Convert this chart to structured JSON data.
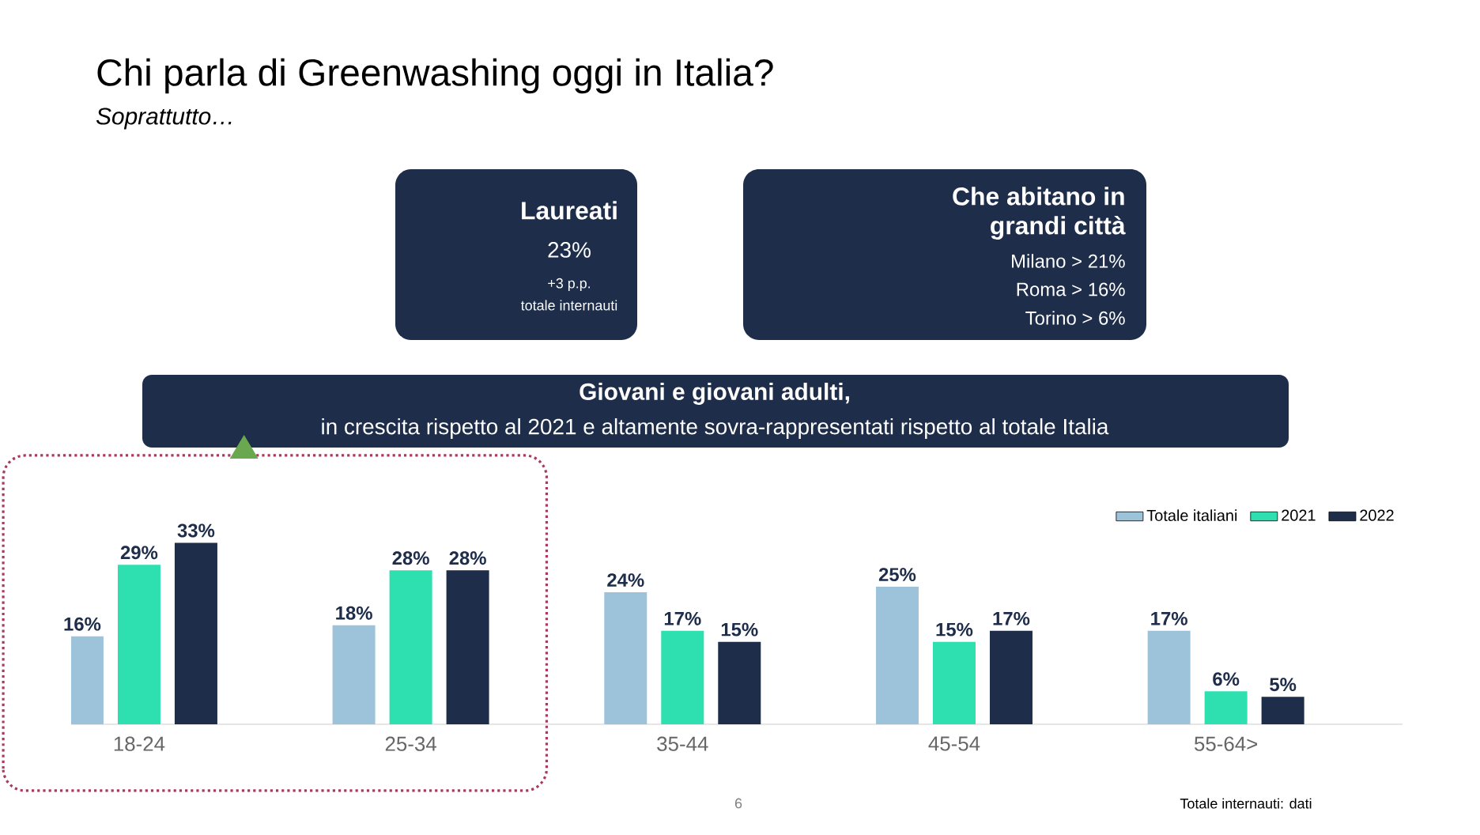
{
  "chart_data": {
    "type": "bar",
    "title": "Chi parla di Greenwashing oggi in Italia?",
    "subtitle": "Soprattutto…",
    "categories": [
      "18-24",
      "25-34",
      "35-44",
      "45-54",
      "55-64>"
    ],
    "series": [
      {
        "name": "Totale italiani",
        "color": "#9dc3db",
        "values": [
          16,
          18,
          24,
          25,
          17
        ],
        "value_labels": [
          "16%",
          "18%",
          "24%",
          "25%",
          "17%"
        ]
      },
      {
        "name": "2021",
        "color": "#2ee0b0",
        "values": [
          29,
          28,
          17,
          15,
          6
        ],
        "value_labels": [
          "29%",
          "28%",
          "17%",
          "15%",
          "6%"
        ]
      },
      {
        "name": "2022",
        "color": "#1e2d4a",
        "values": [
          33,
          28,
          15,
          17,
          5
        ],
        "value_labels": [
          "33%",
          "28%",
          "15%",
          "17%",
          "5%"
        ]
      }
    ],
    "legend": "top right",
    "annotations": [
      "Laureati",
      "23%",
      "+3 p.p.",
      "totale internauti",
      "Che abitano in",
      "grandi città",
      "Milano > 21%",
      "Roma > 16%",
      "Torino >  6%",
      "Giovani e giovani adulti,",
      "in crescita rispetto al 2021 e altamente sovra-rappresentati rispetto al totale Italia",
      "6",
      "Totale internauti: dati"
    ]
  }
}
